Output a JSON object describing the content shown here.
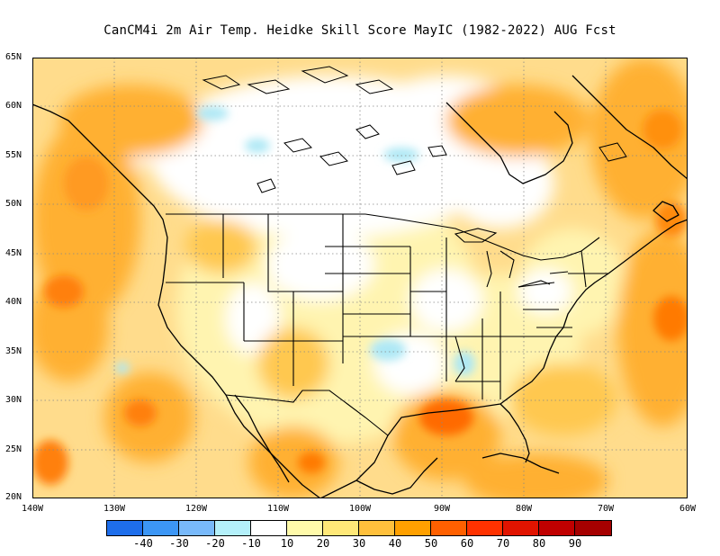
{
  "title": "CanCM4i  2m Air Temp. Heidke Skill Score MayIC (1982-2022) AUG Fcst",
  "latitude_labels": [
    "65N",
    "60N",
    "55N",
    "50N",
    "45N",
    "40N",
    "35N",
    "30N",
    "25N",
    "20N"
  ],
  "longitude_labels": [
    "140W",
    "130W",
    "120W",
    "110W",
    "100W",
    "90W",
    "80W",
    "70W",
    "60W"
  ],
  "colorbar": {
    "colors": [
      "#1e6eeb",
      "#3c96f5",
      "#78b9fa",
      "#b4f0fa",
      "#ffffff",
      "#fffaaa",
      "#ffe878",
      "#ffc03c",
      "#ffa000",
      "#ff6000",
      "#ff3200",
      "#e11400",
      "#c00000",
      "#a50000"
    ],
    "labels": [
      "-40",
      "-30",
      "-20",
      "-10",
      "10",
      "20",
      "30",
      "40",
      "50",
      "60",
      "70",
      "80",
      "90"
    ]
  }
}
